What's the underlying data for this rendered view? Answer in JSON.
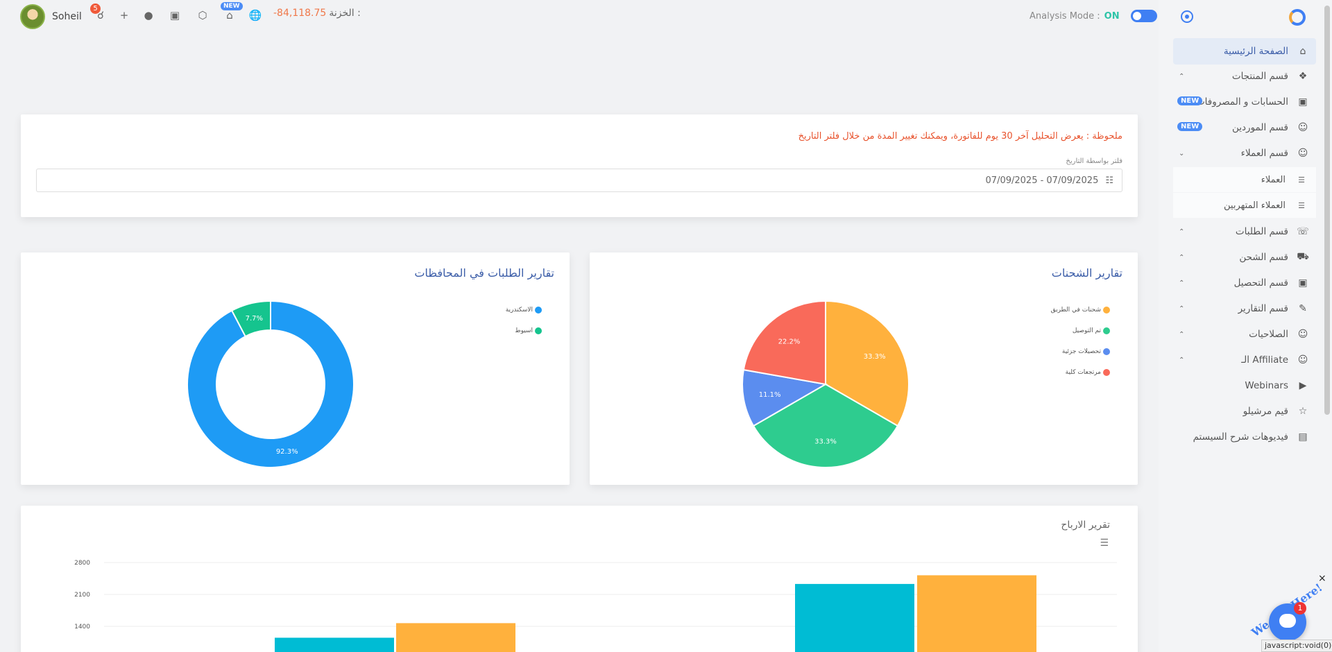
{
  "topbar": {
    "user_name": "Soheil",
    "notifications_count": "5",
    "new_badge": "NEW",
    "balance_label": "الخزنة :",
    "balance_value": "-84,118.75",
    "analysis_label": "Analysis Mode :",
    "analysis_state": "ON"
  },
  "sidebar": {
    "items": [
      {
        "label": "الصفحة الرئيسية",
        "icon": "home-icon"
      },
      {
        "label": "قسم المنتجات",
        "icon": "boxes-icon"
      },
      {
        "label": "الحسابات و المصروفات",
        "icon": "wallet-icon",
        "badge": "NEW"
      },
      {
        "label": "قسم الموردين",
        "icon": "user-icon",
        "badge": "NEW"
      },
      {
        "label": "قسم العملاء",
        "icon": "user-icon"
      },
      {
        "label": "قسم الطلبات",
        "icon": "headset-icon"
      },
      {
        "label": "قسم الشحن",
        "icon": "truck-icon"
      },
      {
        "label": "قسم التحصيل",
        "icon": "cash-icon"
      },
      {
        "label": "قسم التقارير",
        "icon": "report-icon"
      },
      {
        "label": "الصلاحيات",
        "icon": "user-icon"
      },
      {
        "label": "الـ Affiliate",
        "icon": "user-icon"
      },
      {
        "label": "Webinars",
        "icon": "video-icon"
      },
      {
        "label": "قيم مرشيلو",
        "icon": "star-icon"
      },
      {
        "label": "فيديوهات شرح السيستم",
        "icon": "book-icon"
      }
    ],
    "sub_items": [
      {
        "label": "العملاء"
      },
      {
        "label": "العملاء المتهربين"
      }
    ]
  },
  "filter": {
    "note": "ملحوظة : يعرض التحليل آخر 30 يوم للفاتورة، ويمكنك تغيير المدة من خلال فلتر التاريخ",
    "label": "فلتر بواسطة التاريخ",
    "date_range": "07/09/2025 - 07/09/2025"
  },
  "charts": {
    "governorates_title": "تقارير الطلبات في المحافظات",
    "shipments_title": "تقارير الشحنات",
    "profits_title": "تقرير الارباح"
  },
  "chart_data": [
    {
      "type": "pie",
      "title": "تقارير الشحنات",
      "categories": [
        "شحنات في الطريق",
        "تم التوصيل",
        "تحصيلات جزئية",
        "مرتجعات كلية"
      ],
      "values": [
        33.3,
        33.3,
        11.1,
        22.2
      ],
      "labels": [
        "33.3%",
        "33.3%",
        "11.1%",
        "22.2%"
      ],
      "colors": [
        "#ffb13d",
        "#2ecc8f",
        "#5b8def",
        "#f96a5a"
      ],
      "legend": "right"
    },
    {
      "type": "pie",
      "title": "تقارير الطلبات في المحافظات",
      "categories": [
        "الاسكندرية",
        "اسيوط"
      ],
      "values": [
        92.3,
        7.7
      ],
      "labels": [
        "92.3%",
        "7.7%"
      ],
      "colors": [
        "#1e9bf5",
        "#15c48e"
      ],
      "legend": "right"
    },
    {
      "type": "bar",
      "title": "تقرير الارباح",
      "yticks": [
        1400,
        2100,
        2800
      ],
      "series": [
        {
          "color": "#00bcd4",
          "values": [
            1150,
            2330
          ]
        },
        {
          "color": "#ffb13d",
          "values": [
            1470,
            2520
          ]
        }
      ]
    }
  ],
  "chat": {
    "teaser": "We Are Here!",
    "unread": "1",
    "close": "×"
  },
  "status_bar": {
    "url": "javascript:void(0);"
  }
}
